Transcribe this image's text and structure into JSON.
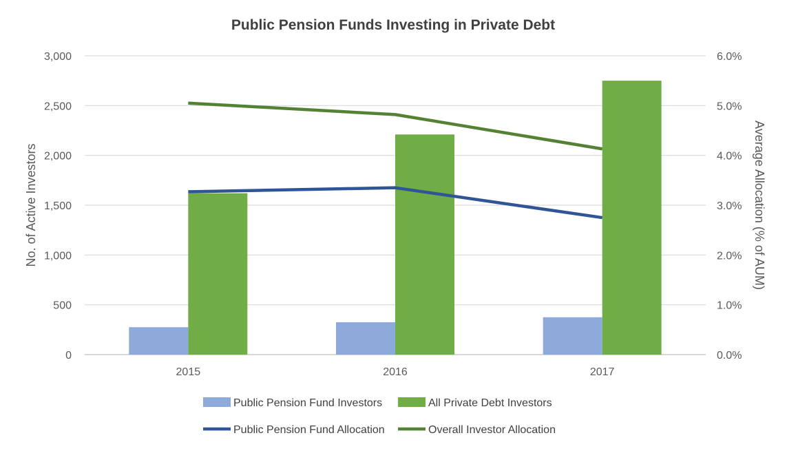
{
  "chart_data": {
    "type": "bar",
    "title": "Public Pension Funds Investing in Private Debt",
    "xlabel": "",
    "ylabel": "No. of Active Investors",
    "y2label": "Average Allocation (% of AUM)",
    "categories": [
      "2015",
      "2016",
      "2017"
    ],
    "ylim": [
      0,
      3000
    ],
    "y2lim": [
      0,
      6
    ],
    "yticks": [
      "0",
      "500",
      "1,000",
      "1,500",
      "2,000",
      "2,500",
      "3,000"
    ],
    "y2ticks": [
      "0.0%",
      "1.0%",
      "2.0%",
      "3.0%",
      "4.0%",
      "5.0%",
      "6.0%"
    ],
    "grid": true,
    "legend_position": "bottom",
    "series": [
      {
        "name": "Public Pension Fund Investors",
        "kind": "bar",
        "axis": "left",
        "color": "#8eaadb",
        "values": [
          275,
          325,
          375
        ]
      },
      {
        "name": "All Private Debt Investors",
        "kind": "bar",
        "axis": "left",
        "color": "#70ad47",
        "values": [
          1620,
          2210,
          2750
        ]
      },
      {
        "name": "Public Pension Fund Allocation",
        "kind": "line",
        "axis": "right",
        "color": "#2f5597",
        "values": [
          3.27,
          3.35,
          2.75
        ]
      },
      {
        "name": "Overall Investor Allocation",
        "kind": "line",
        "axis": "right",
        "color": "#548235",
        "values": [
          5.05,
          4.82,
          4.13
        ]
      }
    ]
  }
}
